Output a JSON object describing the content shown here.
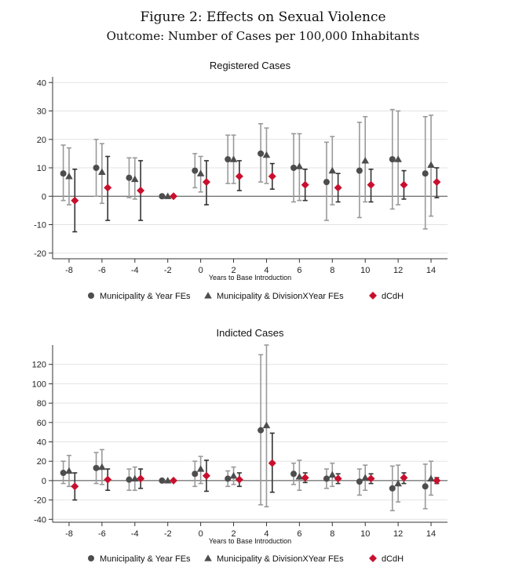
{
  "header": {
    "figure_title": "Figure 2: Effects on Sexual Violence",
    "figure_subtitle": "Outcome: Number of Cases per 100,000 Inhabitants"
  },
  "colors": {
    "series1": "#4d4d4d",
    "series2": "#4d4d4d",
    "series3": "#c8102e",
    "ci_light": "#9a9a9a",
    "ci_dark": "#333333",
    "grid": "#e3e3e3"
  },
  "chart_data": [
    {
      "type": "scatter",
      "title": "Registered Cases",
      "xlabel": "Years to Base Introduction",
      "ylabel": "",
      "xlim": [
        -9.0,
        15.0
      ],
      "ylim": [
        -22,
        42
      ],
      "xticks": [
        -8,
        -6,
        -4,
        -2,
        0,
        2,
        4,
        6,
        8,
        10,
        12,
        14
      ],
      "yticks": [
        -20,
        -10,
        0,
        10,
        20,
        30,
        40
      ],
      "x": [
        -8,
        -6,
        -4,
        -2,
        0,
        2,
        4,
        6,
        8,
        10,
        12,
        14
      ],
      "series": [
        {
          "name": "Municipality & Year FEs",
          "marker": "circle",
          "values": [
            8,
            10,
            6.5,
            0,
            9,
            13,
            15,
            10,
            5,
            9,
            13,
            8
          ],
          "ci_low": [
            -1.5,
            0,
            -0.5,
            0,
            3,
            4.5,
            5,
            -2,
            -8.5,
            -7.5,
            -4.5,
            -11.5
          ],
          "ci_high": [
            18,
            20,
            13.5,
            0,
            15,
            21.5,
            25.5,
            22,
            19,
            26,
            30.5,
            28
          ]
        },
        {
          "name": "Municipality & DivisionXYear FEs",
          "marker": "triangle",
          "values": [
            7,
            8.5,
            6,
            0,
            8,
            13,
            14.5,
            10.5,
            9,
            12.5,
            13,
            11
          ],
          "ci_low": [
            -3,
            -2.5,
            -1,
            0,
            1.5,
            4.5,
            4.5,
            -1.5,
            -3,
            -2,
            -3,
            -7
          ],
          "ci_high": [
            17,
            18.5,
            13.5,
            0,
            14,
            21.5,
            24,
            22,
            21,
            28,
            30,
            28.5
          ]
        },
        {
          "name": "dCdH",
          "marker": "diamond",
          "values": [
            -1.5,
            3,
            2,
            0,
            5,
            7,
            7,
            4,
            3,
            4,
            4,
            5
          ],
          "ci_low": [
            -12.5,
            -8.5,
            -8.5,
            0,
            -3,
            2,
            2.5,
            -1.5,
            -2,
            -2,
            -1,
            -0.5
          ],
          "ci_high": [
            9.5,
            14,
            12.5,
            0,
            12.5,
            12.5,
            11.5,
            9.5,
            8,
            9.5,
            9,
            10
          ]
        }
      ],
      "legend": [
        "Municipality & Year FEs",
        "Municipality & DivisionXYear FEs",
        "dCdH"
      ],
      "legend_position": "bottom",
      "grid": true
    },
    {
      "type": "scatter",
      "title": "Indicted Cases",
      "xlabel": "Years to Base Introduction",
      "ylabel": "",
      "xlim": [
        -9.0,
        15.0
      ],
      "ylim": [
        -43,
        140
      ],
      "xticks": [
        -8,
        -6,
        -4,
        -2,
        0,
        2,
        4,
        6,
        8,
        10,
        12,
        14
      ],
      "yticks": [
        -40,
        -20,
        0,
        20,
        40,
        60,
        80,
        100,
        120
      ],
      "x": [
        -8,
        -6,
        -4,
        -2,
        0,
        2,
        4,
        6,
        8,
        10,
        12,
        14
      ],
      "series": [
        {
          "name": "Municipality & Year FEs",
          "marker": "circle",
          "values": [
            8,
            13,
            1,
            0,
            7,
            2,
            52,
            7,
            2,
            -1,
            -8,
            -6
          ],
          "ci_low": [
            -3,
            -3,
            -10,
            0,
            -6,
            -6,
            -25,
            -4,
            -8,
            -15,
            -31,
            -29
          ],
          "ci_high": [
            20,
            29,
            12,
            0,
            20,
            10,
            130,
            18,
            12,
            12,
            15,
            17
          ]
        },
        {
          "name": "Municipality & DivisionXYear FEs",
          "marker": "triangle",
          "values": [
            10,
            14,
            2,
            0,
            12,
            5,
            57,
            4,
            6,
            3,
            -3,
            2
          ],
          "ci_low": [
            -6,
            -4,
            -10,
            0,
            -3,
            -4,
            -27,
            -10,
            -6,
            -10,
            -22,
            -15
          ],
          "ci_high": [
            26,
            32,
            14,
            0,
            25,
            14,
            140,
            21,
            18,
            16,
            16,
            20
          ]
        },
        {
          "name": "dCdH",
          "marker": "diamond",
          "values": [
            -6,
            1,
            2,
            0,
            5,
            1,
            18,
            3,
            2,
            2,
            3,
            0
          ],
          "ci_low": [
            -20,
            -10,
            -8,
            0,
            -11,
            -6,
            -12,
            -2,
            -3,
            -3,
            -3,
            -3
          ],
          "ci_high": [
            8,
            12,
            12,
            0,
            21,
            8,
            49,
            8,
            7,
            7,
            8,
            3
          ]
        }
      ],
      "legend": [
        "Municipality & Year FEs",
        "Municipality & DivisionXYear FEs",
        "dCdH"
      ],
      "legend_position": "bottom",
      "grid": true
    }
  ]
}
